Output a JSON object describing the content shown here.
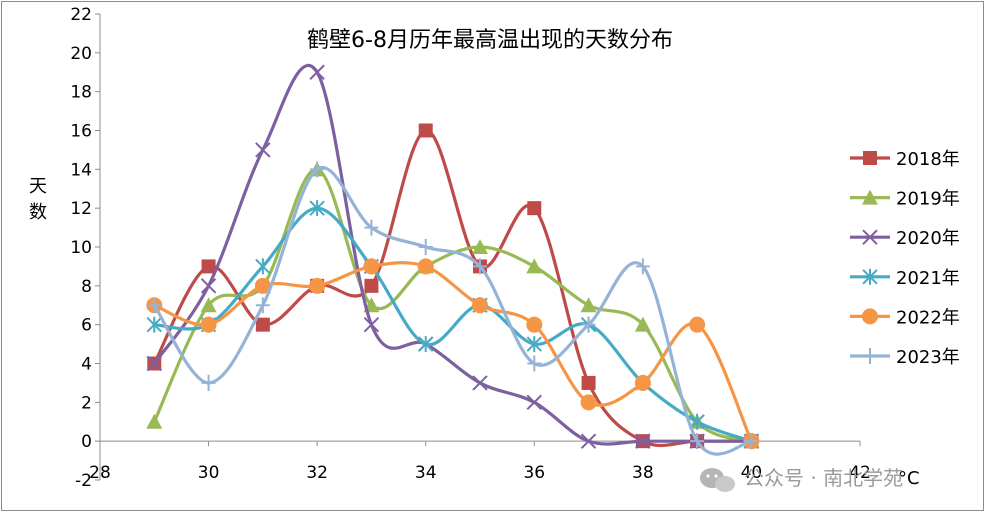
{
  "watermark": {
    "text": "公众号 · 南北学苑",
    "icon": "wechat-icon"
  },
  "chart_data": {
    "type": "line",
    "title": "鹤壁6-8月历年最高温出现的天数分布",
    "xlabel": "°C",
    "ylabel": "天数",
    "xlim": [
      28,
      42
    ],
    "ylim": [
      -2,
      22
    ],
    "x_ticks": [
      28,
      30,
      32,
      34,
      36,
      38,
      40,
      42
    ],
    "y_ticks": [
      -2,
      0,
      2,
      4,
      6,
      8,
      10,
      12,
      14,
      16,
      18,
      20,
      22
    ],
    "grid": false,
    "smooth": true,
    "legend_position": "right",
    "series": [
      {
        "name": "2018年",
        "color": "#be4b48",
        "marker": "square",
        "x": [
          29,
          30,
          31,
          32,
          33,
          34,
          35,
          36,
          37,
          38,
          39,
          40
        ],
        "y": [
          4,
          9,
          6,
          8,
          8,
          16,
          9,
          12,
          3,
          0,
          0,
          0
        ]
      },
      {
        "name": "2019年",
        "color": "#98b954",
        "marker": "triangle",
        "x": [
          29,
          30,
          31,
          32,
          33,
          34,
          35,
          36,
          37,
          38,
          39,
          40
        ],
        "y": [
          1,
          7,
          8,
          14,
          7,
          9,
          10,
          9,
          7,
          6,
          1,
          0
        ]
      },
      {
        "name": "2020年",
        "color": "#7d60a0",
        "marker": "x",
        "x": [
          29,
          30,
          31,
          32,
          33,
          34,
          35,
          36,
          37,
          38,
          39,
          40
        ],
        "y": [
          4,
          8,
          15,
          19,
          6,
          5,
          3,
          2,
          0,
          0,
          0,
          0
        ]
      },
      {
        "name": "2021年",
        "color": "#46aac5",
        "marker": "star",
        "x": [
          29,
          30,
          31,
          32,
          33,
          34,
          35,
          36,
          37,
          38,
          39,
          40
        ],
        "y": [
          6,
          6,
          9,
          12,
          9,
          5,
          7,
          5,
          6,
          3,
          1,
          0
        ]
      },
      {
        "name": "2022年",
        "color": "#f69545",
        "marker": "circle",
        "x": [
          29,
          30,
          31,
          32,
          33,
          34,
          35,
          36,
          37,
          38,
          39,
          40
        ],
        "y": [
          7,
          6,
          8,
          8,
          9,
          9,
          7,
          6,
          2,
          3,
          6,
          0
        ]
      },
      {
        "name": "2023年",
        "color": "#95b3d7",
        "marker": "plus",
        "x": [
          29,
          30,
          31,
          32,
          33,
          34,
          35,
          36,
          37,
          38,
          39,
          40
        ],
        "y": [
          7,
          3,
          7,
          14,
          11,
          10,
          9,
          4,
          6,
          9,
          0,
          0
        ]
      }
    ]
  }
}
